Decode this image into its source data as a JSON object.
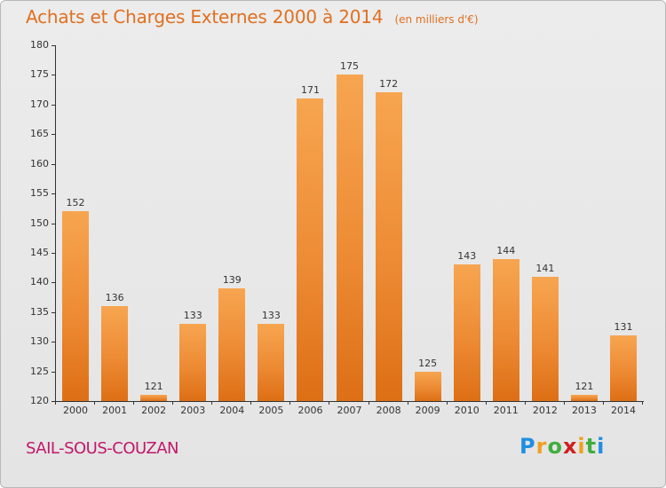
{
  "title": "Achats et Charges Externes 2000 à 2014",
  "unit": "(en milliers d'€)",
  "commune": "SAIL-SOUS-COUZAN",
  "logo": {
    "letters": [
      "P",
      "r",
      "o",
      "x",
      "i",
      "t",
      "i"
    ],
    "colors": [
      "#1f8fe0",
      "#f0a020",
      "#3fae3f",
      "#d02020",
      "#f0a020",
      "#3fae3f",
      "#1f8fe0"
    ]
  },
  "chart_data": {
    "type": "bar",
    "title": "Achats et Charges Externes 2000 à 2014",
    "categories": [
      "2000",
      "2001",
      "2002",
      "2003",
      "2004",
      "2005",
      "2006",
      "2007",
      "2008",
      "2009",
      "2010",
      "2011",
      "2012",
      "2013",
      "2014"
    ],
    "values": [
      152,
      136,
      121,
      133,
      139,
      133,
      171,
      175,
      172,
      125,
      143,
      144,
      141,
      121,
      131
    ],
    "ylim": [
      120,
      180
    ],
    "yticks": [
      120,
      125,
      130,
      135,
      140,
      145,
      150,
      155,
      160,
      165,
      170,
      175,
      180
    ],
    "grid": false,
    "bar_color": "#ed8b34"
  }
}
